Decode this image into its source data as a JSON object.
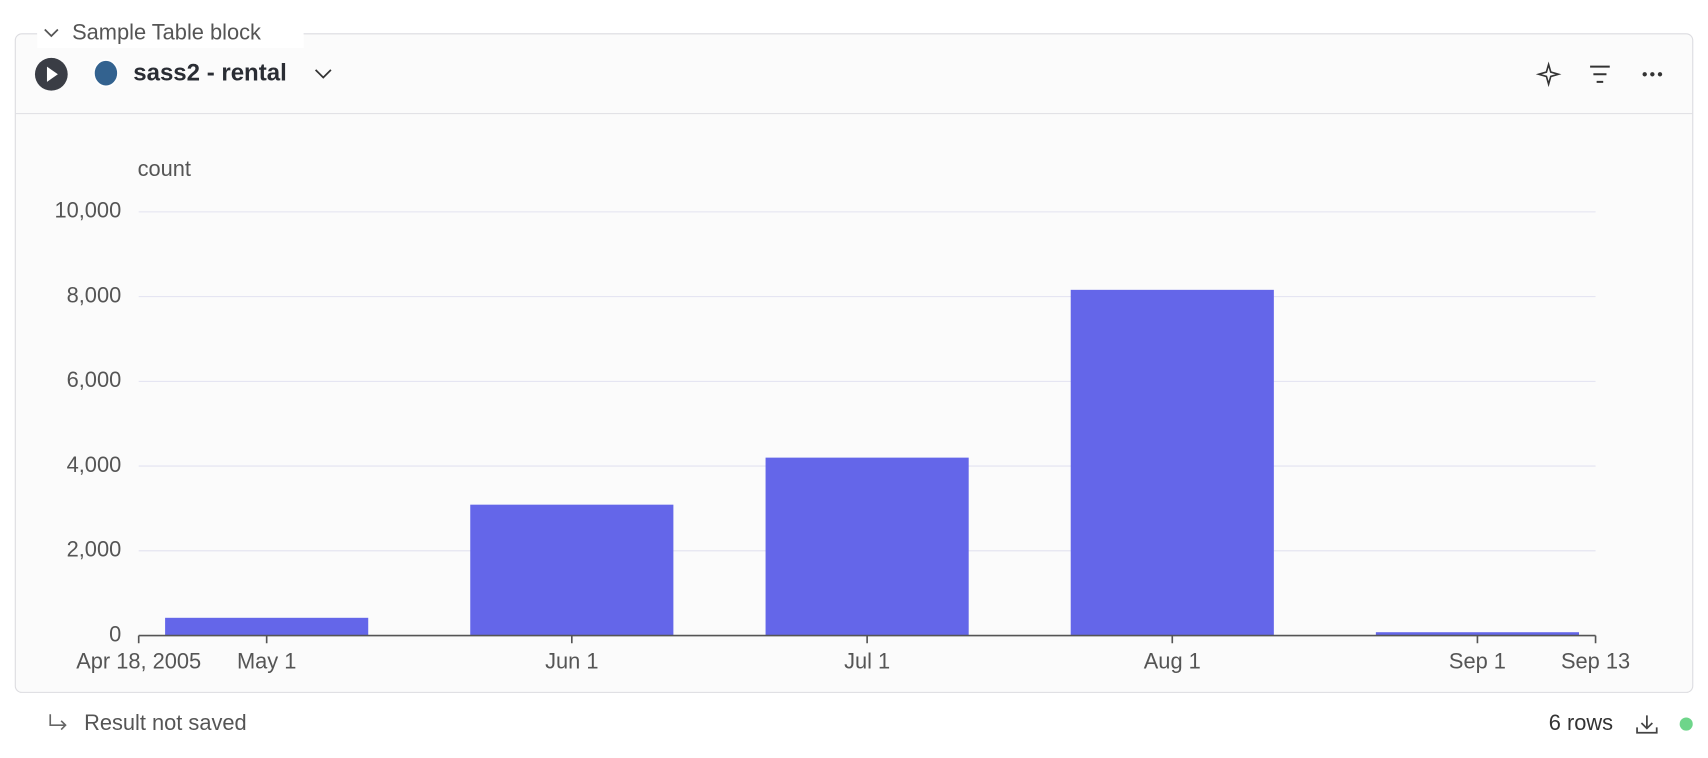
{
  "block": {
    "title": "Sample Table block",
    "source": "sass2 - rental",
    "status": "Result not saved",
    "rows": "6 rows"
  },
  "chart_data": {
    "type": "bar",
    "y_label": "count",
    "x": [
      "2005-05-01",
      "2005-06-01",
      "2005-07-01",
      "2005-08-01",
      "2005-09-01"
    ],
    "values": [
      420,
      3090,
      4200,
      8160,
      80
    ],
    "color": "#6466e9",
    "xlim": [
      "2005-04-18",
      "2005-09-13"
    ],
    "xticks": [
      {
        "value": "2005-04-18",
        "label": "Apr 18, 2005"
      },
      {
        "value": "2005-05-01",
        "label": "May 1"
      },
      {
        "value": "2005-06-01",
        "label": "Jun 1"
      },
      {
        "value": "2005-07-01",
        "label": "Jul 1"
      },
      {
        "value": "2005-08-01",
        "label": "Aug 1"
      },
      {
        "value": "2005-09-01",
        "label": "Sep 1"
      },
      {
        "value": "2005-09-13",
        "label": "Sep 13"
      }
    ],
    "ylim": [
      0,
      10000
    ],
    "yticks": [
      0,
      {
        "value": 2000,
        "label": "2,000"
      },
      {
        "value": 4000,
        "label": "4,000"
      },
      {
        "value": 6000,
        "label": "6,000"
      },
      {
        "value": 8000,
        "label": "8,000"
      },
      {
        "value": 10000,
        "label": "10,000"
      }
    ],
    "grid": true
  }
}
